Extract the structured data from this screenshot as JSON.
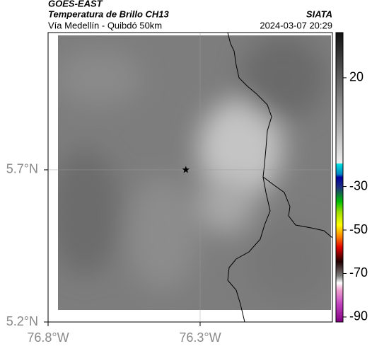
{
  "header": {
    "title": "GOES-EAST",
    "subtitle": "Temperatura de Brillo CH13",
    "route": "Vía Medellín - Quibdó 50km",
    "source": "SIATA",
    "datetime": "2024-03-07 20:29"
  },
  "map": {
    "xlim": [
      -76.8,
      -75.865
    ],
    "ylim": [
      5.2,
      6.151
    ],
    "xticks": [
      {
        "value": -76.8,
        "label": "76.8°W"
      },
      {
        "value": -76.3,
        "label": "76.3°W"
      }
    ],
    "yticks": [
      {
        "value": 5.2,
        "label": "5.2°N"
      },
      {
        "value": 5.7,
        "label": "5.7°N"
      }
    ],
    "grid": true,
    "marker": {
      "lon": -76.347,
      "lat": 5.7
    }
  },
  "colorbar": {
    "lim": [
      -92.3,
      40.8
    ],
    "ticks": [
      20,
      -30,
      -50,
      -70,
      -90
    ]
  }
}
